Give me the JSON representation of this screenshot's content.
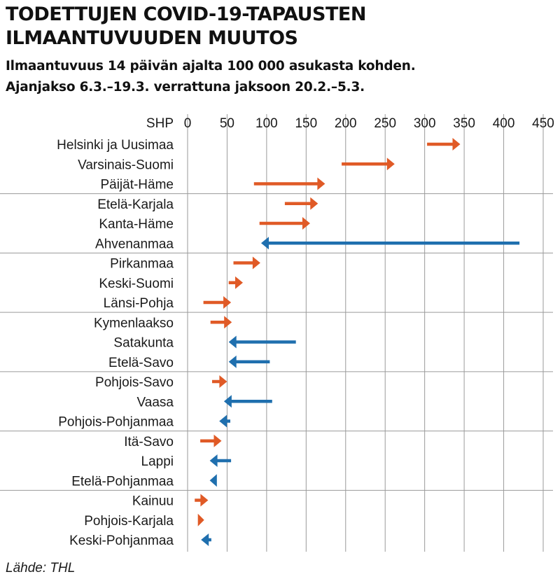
{
  "title_lines": [
    "TODETTUJEN COVID-19-TAPAUSTEN",
    "ILMAANTUVUUDEN MUUTOS"
  ],
  "subtitle_lines": [
    "Ilmaantuvuus 14 päivän ajalta 100 000 asukasta kohden.",
    "Ajanjakso 6.3.–19.3. verrattuna jaksoon 20.2.–5.3."
  ],
  "source": "Lähde: THL",
  "colors": {
    "increase": "#e05a26",
    "decrease": "#1f6fae",
    "grid": "#9a9a9a",
    "separator": "#9a9a9a"
  },
  "chart_data": {
    "type": "arrow",
    "title": "TODETTUJEN COVID-19-TAPAUSTEN ILMAANTUVUUDEN MUUTOS",
    "subtitle": "Ilmaantuvuus 14 päivän ajalta 100 000 asukasta kohden. Ajanjakso 6.3.–19.3. verrattuna jaksoon 20.2.–5.3.",
    "category_header": "SHP",
    "xlim": [
      0,
      450
    ],
    "xticks": [
      0,
      50,
      100,
      150,
      200,
      250,
      300,
      350,
      400,
      450
    ],
    "series": [
      {
        "name": "20.2.–5.3.",
        "role": "from"
      },
      {
        "name": "6.3.–19.3.",
        "role": "to"
      }
    ],
    "group_size": 3,
    "rows": [
      {
        "label": "Helsinki ja Uusimaa",
        "from": 303,
        "to": 345
      },
      {
        "label": "Varsinais-Suomi",
        "from": 195,
        "to": 262
      },
      {
        "label": "Päijät-Häme",
        "from": 84,
        "to": 174
      },
      {
        "label": "Etelä-Karjala",
        "from": 123,
        "to": 165
      },
      {
        "label": "Kanta-Häme",
        "from": 91,
        "to": 155
      },
      {
        "label": "Ahvenanmaa",
        "from": 420,
        "to": 93
      },
      {
        "label": "Pirkanmaa",
        "from": 58,
        "to": 92
      },
      {
        "label": "Keski-Suomi",
        "from": 52,
        "to": 70
      },
      {
        "label": "Länsi-Pohja",
        "from": 20,
        "to": 55
      },
      {
        "label": "Kymenlaakso",
        "from": 29,
        "to": 56
      },
      {
        "label": "Satakunta",
        "from": 137,
        "to": 52
      },
      {
        "label": "Etelä-Savo",
        "from": 104,
        "to": 52
      },
      {
        "label": "Pohjois-Savo",
        "from": 31,
        "to": 50
      },
      {
        "label": "Vaasa",
        "from": 107,
        "to": 46
      },
      {
        "label": "Pohjois-Pohjanmaa",
        "from": 54,
        "to": 40
      },
      {
        "label": "Itä-Savo",
        "from": 16,
        "to": 43
      },
      {
        "label": "Lappi",
        "from": 55,
        "to": 28
      },
      {
        "label": "Etelä-Pohjanmaa",
        "from": 37,
        "to": 28
      },
      {
        "label": "Kainuu",
        "from": 9,
        "to": 26
      },
      {
        "label": "Pohjois-Karjala",
        "from": 13,
        "to": 21
      },
      {
        "label": "Keski-Pohjanmaa",
        "from": 30,
        "to": 17
      }
    ]
  }
}
